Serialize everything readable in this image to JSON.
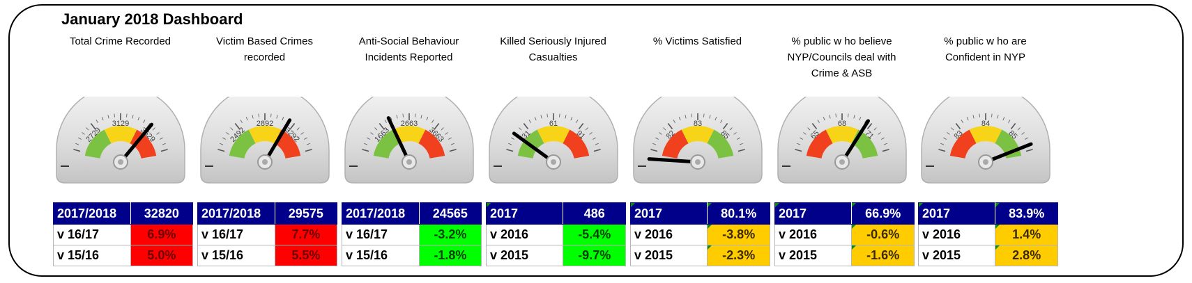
{
  "dashboard": {
    "title": "January 2018 Dashboard"
  },
  "panels": [
    {
      "title_lines": [
        "Total Crime Recorded"
      ],
      "gauge": {
        "ticks": [
          "2729",
          "3129",
          "3529"
        ],
        "needle_fraction": 0.72,
        "zones": [
          "green",
          "yellow",
          "red"
        ]
      },
      "rows": [
        {
          "label": "2017/2018",
          "value": "32820",
          "status": "header"
        },
        {
          "label": "v 16/17",
          "value": "6.9%",
          "status": "red"
        },
        {
          "label": "v 15/16",
          "value": "5.0%",
          "status": "red"
        }
      ]
    },
    {
      "title_lines": [
        "Victim Based Crimes",
        "recorded"
      ],
      "gauge": {
        "ticks": [
          "2492",
          "2892",
          "3292"
        ],
        "needle_fraction": 0.67,
        "zones": [
          "green",
          "yellow",
          "red"
        ]
      },
      "rows": [
        {
          "label": "2017/2018",
          "value": "29575",
          "status": "header"
        },
        {
          "label": "v 16/17",
          "value": "7.7%",
          "status": "red"
        },
        {
          "label": "v 15/16",
          "value": "5.5%",
          "status": "red"
        }
      ]
    },
    {
      "title_lines": [
        "Anti-Social Behaviour",
        "Incidents Reported"
      ],
      "gauge": {
        "ticks": [
          "1663",
          "2663",
          "3663"
        ],
        "needle_fraction": 0.36,
        "zones": [
          "green",
          "yellow",
          "red"
        ]
      },
      "rows": [
        {
          "label": "2017/2018",
          "value": "24565",
          "status": "header"
        },
        {
          "label": "v 16/17",
          "value": "-3.2%",
          "status": "green"
        },
        {
          "label": "v 15/16",
          "value": "-1.8%",
          "status": "green"
        }
      ]
    },
    {
      "title_lines": [
        "Killed Seriously Injured",
        "Casualties"
      ],
      "gauge": {
        "ticks": [
          "31",
          "61",
          "91"
        ],
        "needle_fraction": 0.2,
        "zones": [
          "green",
          "yellow",
          "red"
        ]
      },
      "rows": [
        {
          "label": "2017",
          "value": "486",
          "status": "header"
        },
        {
          "label": "v 2016",
          "value": "-5.4%",
          "status": "green"
        },
        {
          "label": "v 2015",
          "value": "-9.7%",
          "status": "green"
        }
      ]
    },
    {
      "title_lines": [
        "% Victims Satisfied"
      ],
      "gauge": {
        "ticks": [
          "82",
          "83",
          "85"
        ],
        "needle_fraction": 0.02,
        "zones": [
          "red",
          "yellow",
          "green"
        ]
      },
      "rows": [
        {
          "label": "2017",
          "value": "80.1%",
          "status": "header"
        },
        {
          "label": "v 2016",
          "value": "-3.8%",
          "status": "amber"
        },
        {
          "label": "v 2015",
          "value": "-2.3%",
          "status": "amber"
        }
      ]
    },
    {
      "title_lines": [
        "% public w ho believe",
        "NYP/Councils deal with",
        "Crime & ASB"
      ],
      "gauge": {
        "ticks": [
          "65",
          "68",
          "71"
        ],
        "needle_fraction": 0.68,
        "zones": [
          "red",
          "yellow",
          "green"
        ]
      },
      "rows": [
        {
          "label": "2017",
          "value": "66.9%",
          "status": "header"
        },
        {
          "label": "v 2016",
          "value": "-0.6%",
          "status": "amber"
        },
        {
          "label": "v 2015",
          "value": "-1.6%",
          "status": "amber"
        }
      ]
    },
    {
      "title_lines": [
        "% public w ho are",
        "Confident in NYP"
      ],
      "gauge": {
        "ticks": [
          "83",
          "84",
          "85"
        ],
        "needle_fraction": 0.88,
        "zones": [
          "red",
          "yellow",
          "green"
        ]
      },
      "rows": [
        {
          "label": "2017",
          "value": "83.9%",
          "status": "header"
        },
        {
          "label": "v 2016",
          "value": "1.4%",
          "status": "amber"
        },
        {
          "label": "v 2015",
          "value": "2.8%",
          "status": "amber"
        }
      ]
    }
  ],
  "colors": {
    "header_bg": "#00008b",
    "red": "#ff0000",
    "green": "#00ff00",
    "amber": "#ffcc00",
    "zone_green": "#7cc242",
    "zone_yellow": "#f7d417",
    "zone_red": "#f0401e"
  }
}
